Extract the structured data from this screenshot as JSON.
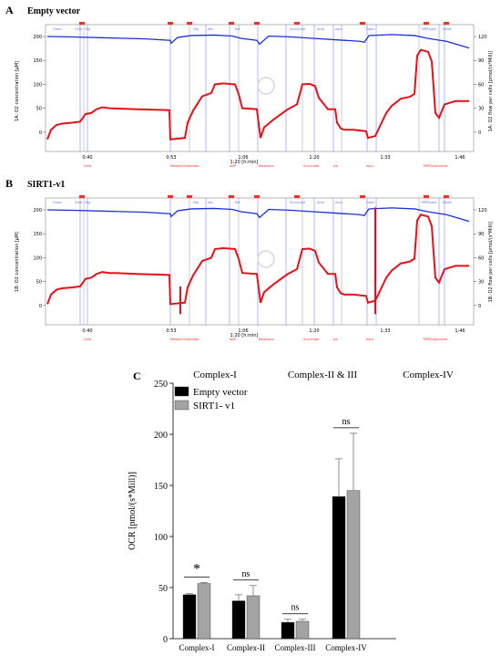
{
  "colors": {
    "o2_line": "#1f2fd8",
    "flux_line": "#e3121a",
    "empty_bar": "#000000",
    "sirt_bar": "#a3a3a3",
    "event_line_blue": "#6670ff",
    "event_line_gray": "#9a9a9a",
    "marker_red": "#ff2a2a"
  },
  "panels": {
    "A": {
      "letter": "A",
      "title": "Empty vector",
      "left_axis_label": "1A: O2 concentration [µM]",
      "right_axis_label": "1A: O2 flow per cells [pmol/(s*Mill)]"
    },
    "B": {
      "letter": "B",
      "title": "SIRT1-v1",
      "left_axis_label": "1B: O2 concentration [µM]",
      "right_axis_label": "1B: O2 flow per cells [pmol/(s*Mill)]"
    },
    "C": {
      "letter": "C"
    }
  },
  "trace_axes": {
    "left_ticks": [
      "200",
      "150",
      "100",
      "50",
      "0"
    ],
    "right_ticks": [
      "120",
      "90",
      "60",
      "30",
      "0"
    ],
    "x_ticks": [
      "0:40",
      "0:53",
      "1:06",
      "1:20",
      "1:33",
      "1:46"
    ],
    "x_label": "1:20 [h:min]"
  },
  "trace_events_top": [
    "Close",
    "Cells",
    "Hig",
    "Hig",
    "adc",
    "Rot",
    "Succinate",
    "Ama",
    "Ascs",
    "Open",
    "TMPD/ase",
    "Azide"
  ],
  "trace_events_bottom": [
    "Cells",
    "Malate/Glutamate",
    "ADP",
    "Rotenone",
    "Succinate",
    "AA",
    "Ascs",
    "TMPD/Ase",
    "Azide"
  ],
  "complex_labels": [
    "Complex-I",
    "Complex-II & III",
    "Complex-IV"
  ],
  "chart_data": {
    "type": "bar",
    "categories": [
      "Complex-I",
      "Complex-II",
      "Complex-III",
      "Complex-IV"
    ],
    "series": [
      {
        "name": "Empty vector",
        "values": [
          43,
          37,
          16,
          139
        ],
        "errors": [
          1,
          6,
          3,
          37
        ]
      },
      {
        "name": "SIRT1- v1",
        "values": [
          54,
          42,
          17,
          145
        ],
        "errors": [
          1,
          10,
          2,
          56
        ]
      }
    ],
    "significance": [
      "*",
      "ns",
      "ns",
      "ns"
    ],
    "ylabel": "OCR [pmol/(s*Mill)]",
    "yticks": [
      "0",
      "50",
      "100",
      "150",
      "200",
      "250"
    ],
    "ylim": [
      0,
      250
    ],
    "legend_position": "top-left"
  }
}
